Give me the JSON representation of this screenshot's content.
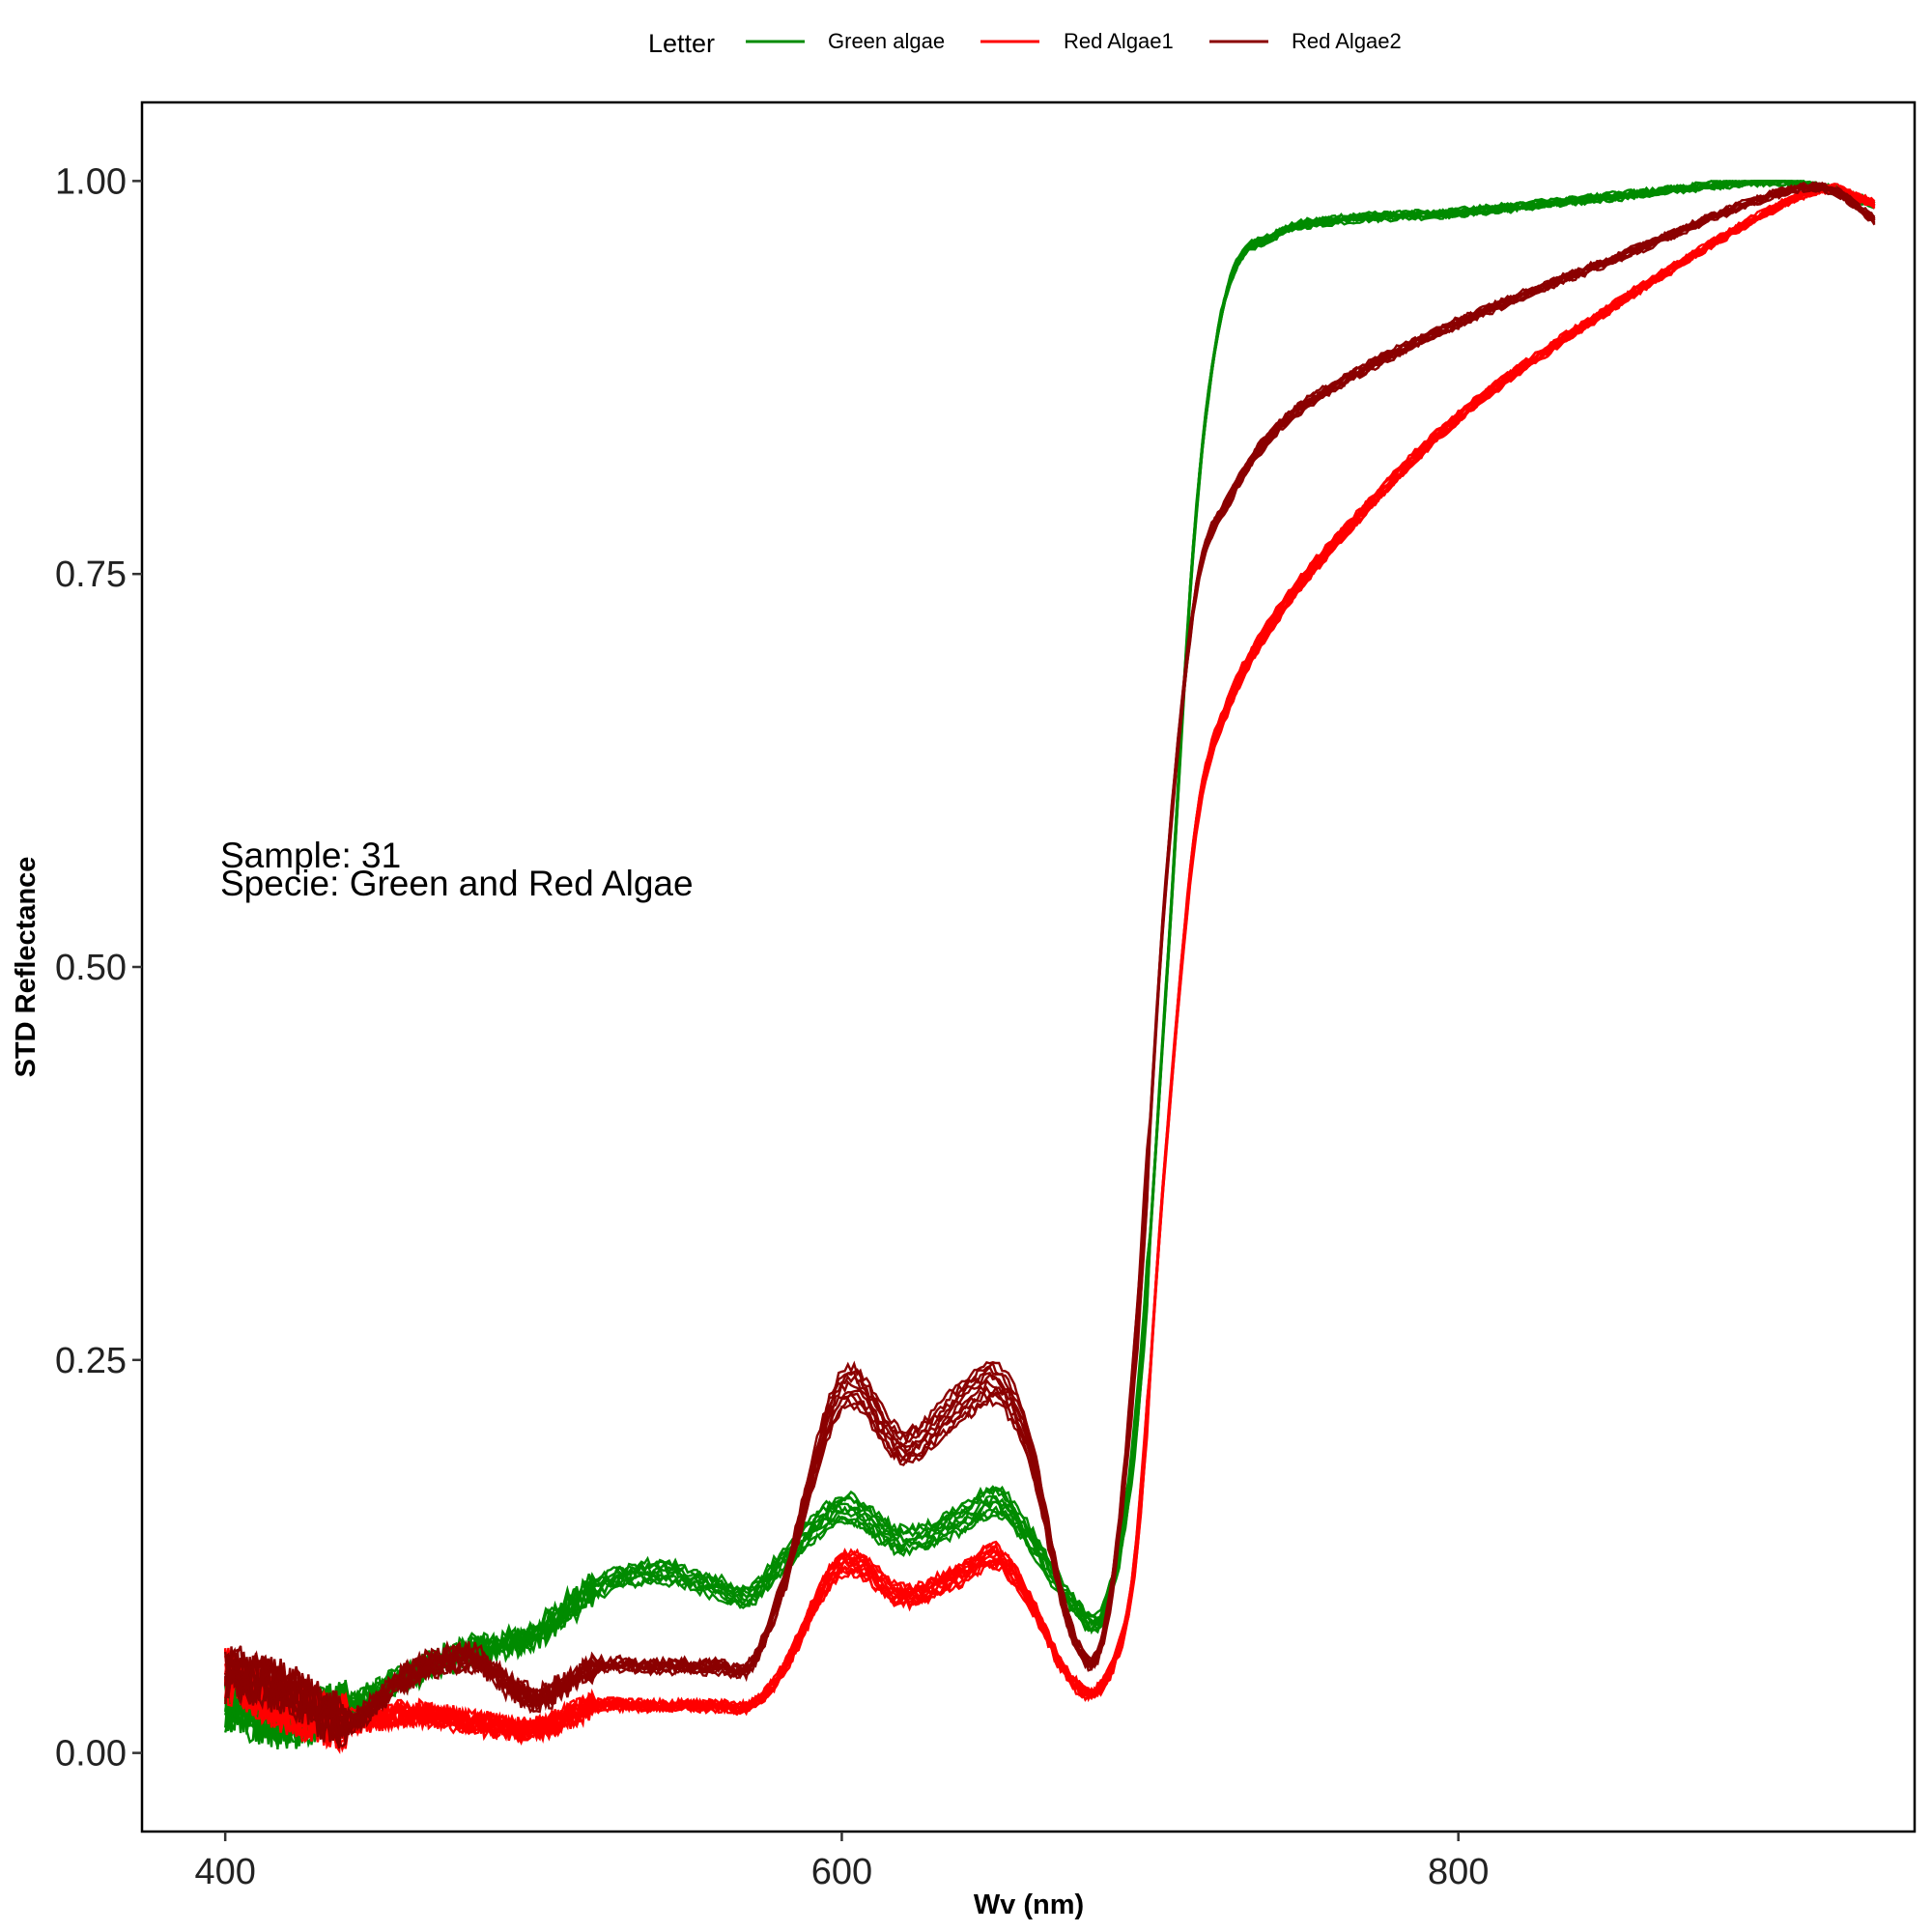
{
  "chart_data": {
    "type": "line",
    "xlabel": "Wv (nm)",
    "ylabel": "STD Reflectance",
    "xlim": [
      373,
      948
    ],
    "ylim": [
      -0.05,
      1.05
    ],
    "x_ticks": [
      400,
      600,
      800
    ],
    "y_ticks": [
      0.0,
      0.25,
      0.5,
      0.75,
      1.0
    ],
    "x_tick_labels": [
      "400",
      "600",
      "800"
    ],
    "y_tick_labels": [
      "0.00",
      "0.25",
      "0.50",
      "0.75",
      "1.00"
    ],
    "grid": false,
    "legend": {
      "title": "Letter",
      "placement": "top",
      "entries": [
        "Green algae",
        "Red Algae1",
        "Red Algae2"
      ]
    },
    "annotations": [
      "Sample: 31",
      "Specie: Green and Red Algae"
    ],
    "series": [
      {
        "name": "Green algae",
        "color": "#008B00",
        "replicates": 10,
        "x": [
          400,
          420,
          440,
          460,
          480,
          500,
          520,
          540,
          560,
          570,
          580,
          600,
          620,
          640,
          650,
          660,
          675,
          685,
          695,
          705,
          715,
          725,
          740,
          760,
          800,
          850,
          900,
          920,
          935
        ],
        "y": [
          0.03,
          0.02,
          0.03,
          0.05,
          0.065,
          0.075,
          0.105,
          0.115,
          0.105,
          0.1,
          0.12,
          0.155,
          0.135,
          0.15,
          0.16,
          0.14,
          0.095,
          0.09,
          0.2,
          0.48,
          0.79,
          0.93,
          0.965,
          0.975,
          0.98,
          0.99,
          1.0,
          0.995,
          0.985
        ]
      },
      {
        "name": "Red Algae1",
        "color": "#FF0000",
        "replicates": 12,
        "x": [
          400,
          420,
          440,
          460,
          480,
          500,
          520,
          540,
          560,
          570,
          580,
          600,
          620,
          640,
          650,
          660,
          675,
          685,
          695,
          705,
          715,
          725,
          740,
          760,
          800,
          850,
          900,
          920,
          935
        ],
        "y": [
          0.05,
          0.03,
          0.02,
          0.025,
          0.02,
          0.015,
          0.03,
          0.03,
          0.03,
          0.03,
          0.05,
          0.12,
          0.1,
          0.115,
          0.125,
          0.1,
          0.045,
          0.045,
          0.12,
          0.38,
          0.59,
          0.665,
          0.72,
          0.77,
          0.85,
          0.92,
          0.98,
          0.995,
          0.985
        ]
      },
      {
        "name": "Red Algae2",
        "color": "#8B0000",
        "replicates": 10,
        "x": [
          400,
          420,
          440,
          460,
          480,
          500,
          520,
          540,
          560,
          570,
          580,
          600,
          620,
          640,
          650,
          660,
          675,
          685,
          695,
          705,
          715,
          725,
          740,
          760,
          800,
          850,
          900,
          920,
          935
        ],
        "y": [
          0.05,
          0.04,
          0.02,
          0.05,
          0.06,
          0.035,
          0.055,
          0.055,
          0.055,
          0.055,
          0.1,
          0.23,
          0.195,
          0.225,
          0.235,
          0.2,
          0.075,
          0.075,
          0.25,
          0.55,
          0.74,
          0.795,
          0.84,
          0.87,
          0.91,
          0.95,
          0.99,
          0.995,
          0.975
        ]
      }
    ]
  }
}
